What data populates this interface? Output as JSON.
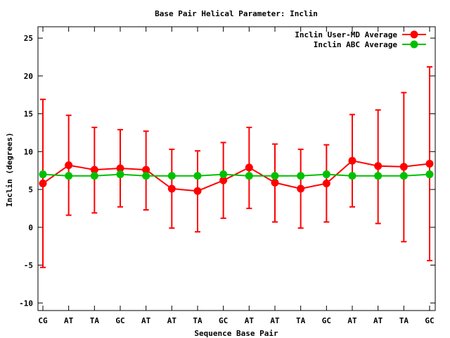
{
  "chart_data": {
    "type": "line",
    "title": "Base Pair Helical Parameter: Inclin",
    "xlabel": "Sequence Base Pair",
    "ylabel": "Inclin (degrees)",
    "categories": [
      "CG",
      "AT",
      "TA",
      "GC",
      "AT",
      "AT",
      "TA",
      "GC",
      "AT",
      "AT",
      "TA",
      "GC",
      "AT",
      "AT",
      "TA",
      "GC"
    ],
    "ylim": [
      -11,
      26.5
    ],
    "yticks": [
      -10,
      -5,
      0,
      5,
      10,
      15,
      20,
      25
    ],
    "legend_position": "top-right",
    "grid": false,
    "series": [
      {
        "name": "Inclin User-MD Average",
        "color": "#ff0000",
        "values": [
          5.8,
          8.2,
          7.6,
          7.8,
          7.6,
          5.1,
          4.8,
          6.2,
          7.9,
          5.9,
          5.1,
          5.8,
          8.8,
          8.1,
          8.0,
          8.4
        ],
        "error_low": [
          -5.3,
          1.6,
          1.9,
          2.7,
          2.3,
          -0.1,
          -0.6,
          1.2,
          2.5,
          0.7,
          -0.1,
          0.7,
          2.7,
          0.5,
          -1.9,
          -4.4
        ],
        "error_high": [
          16.9,
          14.8,
          13.2,
          12.9,
          12.7,
          10.3,
          10.1,
          11.2,
          13.2,
          11.0,
          10.3,
          10.9,
          14.9,
          15.5,
          17.8,
          21.2
        ]
      },
      {
        "name": "Inclin ABC Average",
        "color": "#00c000",
        "values": [
          7.0,
          6.8,
          6.8,
          7.0,
          6.8,
          6.8,
          6.8,
          7.0,
          6.8,
          6.8,
          6.8,
          7.0,
          6.8,
          6.8,
          6.8,
          7.0
        ]
      }
    ]
  }
}
